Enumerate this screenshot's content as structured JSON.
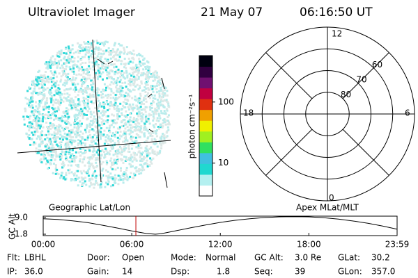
{
  "header": {
    "instrument": "Ultraviolet Imager",
    "date": "21 May 07",
    "time": "06:16:50 UT"
  },
  "colorbar": {
    "label": "photon cm⁻²s⁻¹",
    "log": true,
    "range": [
      2.9,
      575
    ],
    "ticks": [
      10,
      100
    ],
    "colors": [
      "#ffffff",
      "#b4f0f0",
      "#20d8d0",
      "#40c0e0",
      "#30e060",
      "#a0f020",
      "#f0f000",
      "#f0a000",
      "#e03010",
      "#c00040",
      "#701070",
      "#300040",
      "#000010"
    ]
  },
  "globe": {
    "label": "Geographic Lat/Lon"
  },
  "polar": {
    "label": "Apex MLat/MLT",
    "mlt_labels": {
      "top": "12",
      "left": "18",
      "right": "6",
      "bottom": "0"
    },
    "lat_rings": [
      60,
      70,
      80
    ],
    "outer_lat": 50
  },
  "altitude_plot": {
    "ylabel": "GC Alt",
    "ylim": [
      1.2,
      9.6
    ],
    "yticks": [
      {
        "value": 9.0,
        "label": "9.0"
      },
      1.8
    ],
    "xlim": [
      0,
      23.98
    ],
    "xticks": [
      {
        "value": 0,
        "label": "00:00"
      },
      {
        "value": 6,
        "label": "06:00"
      },
      {
        "value": 12,
        "label": "12:00"
      },
      {
        "value": 18,
        "label": "18:00"
      },
      {
        "value": 23.98,
        "label": "23:59"
      }
    ],
    "hours": [
      0,
      1,
      2,
      3,
      4,
      5,
      6,
      7,
      7.6,
      8,
      9,
      10,
      11,
      12,
      13,
      14,
      15,
      16,
      17,
      18,
      19,
      20,
      21,
      22,
      23,
      23.98
    ],
    "altitude": [
      8.5,
      8.2,
      7.6,
      6.8,
      5.7,
      4.5,
      3.2,
      2.1,
      1.8,
      2.0,
      3.3,
      4.6,
      5.8,
      6.9,
      7.8,
      8.5,
      9.0,
      9.3,
      9.4,
      9.3,
      8.9,
      8.3,
      7.5,
      6.5,
      5.3,
      4.0
    ],
    "marker": 6.28,
    "marker_color": "#c00000"
  },
  "status": [
    [
      {
        "label": "Flt:",
        "value": "LBHL"
      },
      {
        "label": "Door:",
        "value": "Open"
      },
      {
        "label": "Mode:",
        "value": "Normal"
      },
      {
        "label": "GC Alt:",
        "value": "3.0 Re"
      },
      {
        "label": "GLat:",
        "value": "30.2"
      }
    ],
    [
      {
        "label": "IP:",
        "value": "36.0"
      },
      {
        "label": "Gain:",
        "value": "14"
      },
      {
        "label": "Dsp:",
        "value": "1.8"
      },
      {
        "label": "Seq:",
        "value": "39"
      },
      {
        "label": "GLon:",
        "value": "357.0"
      }
    ]
  ]
}
